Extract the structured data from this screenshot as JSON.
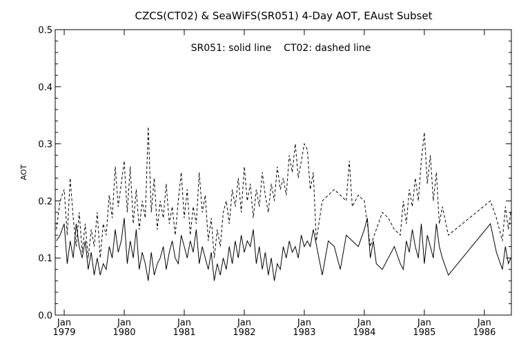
{
  "chart_data": {
    "type": "line",
    "title": "CZCS(CT02) & SeaWiFS(SR051) 4-Day AOT, EAust Subset",
    "annotation": "SR051: solid line    CT02: dashed line",
    "xlabel": "",
    "ylabel": "AOT",
    "xlim": [
      1978.85,
      1986.45
    ],
    "ylim": [
      0.0,
      0.5
    ],
    "yticks": [
      "0.0",
      "0.1",
      "0.2",
      "0.3",
      "0.4",
      "0.5"
    ],
    "xticks": [
      {
        "month": "Jan",
        "year": "1979",
        "x": 1979.0
      },
      {
        "month": "Jan",
        "year": "1980",
        "x": 1980.0
      },
      {
        "month": "Jan",
        "year": "1981",
        "x": 1981.0
      },
      {
        "month": "Jan",
        "year": "1982",
        "x": 1982.0
      },
      {
        "month": "Jan",
        "year": "1983",
        "x": 1983.0
      },
      {
        "month": "Jan",
        "year": "1984",
        "x": 1984.0
      },
      {
        "month": "Jan",
        "year": "1985",
        "x": 1985.0
      },
      {
        "month": "Jan",
        "year": "1986",
        "x": 1986.0
      }
    ],
    "grid": false,
    "series": [
      {
        "name": "SR051",
        "style": "solid",
        "x": [
          1978.87,
          1978.93,
          1979.0,
          1979.05,
          1979.1,
          1979.15,
          1979.2,
          1979.25,
          1979.3,
          1979.35,
          1979.4,
          1979.45,
          1979.5,
          1979.55,
          1979.6,
          1979.65,
          1979.7,
          1979.75,
          1979.8,
          1979.85,
          1979.9,
          1979.95,
          1980.0,
          1980.05,
          1980.1,
          1980.15,
          1980.2,
          1980.25,
          1980.3,
          1980.35,
          1980.4,
          1980.45,
          1980.5,
          1980.55,
          1980.6,
          1980.65,
          1980.7,
          1980.75,
          1980.8,
          1980.85,
          1980.9,
          1980.95,
          1981.0,
          1981.05,
          1981.1,
          1981.15,
          1981.2,
          1981.25,
          1981.3,
          1981.35,
          1981.4,
          1981.45,
          1981.5,
          1981.55,
          1981.6,
          1981.65,
          1981.7,
          1981.75,
          1981.8,
          1981.85,
          1981.9,
          1981.95,
          1982.0,
          1982.05,
          1982.1,
          1982.15,
          1982.2,
          1982.25,
          1982.3,
          1982.35,
          1982.4,
          1982.45,
          1982.5,
          1982.55,
          1982.6,
          1982.65,
          1982.7,
          1982.75,
          1982.8,
          1982.85,
          1982.9,
          1982.95,
          1983.0,
          1983.05,
          1983.1,
          1983.15,
          1983.3,
          1983.4,
          1983.5,
          1983.6,
          1983.7,
          1983.8,
          1983.9,
          1984.0,
          1984.05,
          1984.1,
          1984.15,
          1984.2,
          1984.3,
          1984.4,
          1984.5,
          1984.6,
          1984.65,
          1984.7,
          1984.75,
          1984.8,
          1984.85,
          1984.9,
          1984.95,
          1985.0,
          1985.05,
          1985.1,
          1985.15,
          1985.2,
          1985.25,
          1985.3,
          1985.4,
          1986.1,
          1986.2,
          1986.3,
          1986.35,
          1986.4,
          1986.44
        ],
        "y": [
          0.13,
          0.14,
          0.16,
          0.09,
          0.13,
          0.1,
          0.16,
          0.12,
          0.1,
          0.13,
          0.08,
          0.11,
          0.07,
          0.1,
          0.07,
          0.09,
          0.08,
          0.12,
          0.1,
          0.15,
          0.11,
          0.13,
          0.17,
          0.09,
          0.13,
          0.1,
          0.15,
          0.08,
          0.11,
          0.09,
          0.06,
          0.11,
          0.07,
          0.09,
          0.1,
          0.12,
          0.08,
          0.11,
          0.13,
          0.1,
          0.09,
          0.14,
          0.12,
          0.1,
          0.13,
          0.11,
          0.15,
          0.09,
          0.12,
          0.1,
          0.08,
          0.11,
          0.06,
          0.09,
          0.07,
          0.1,
          0.08,
          0.12,
          0.09,
          0.13,
          0.1,
          0.14,
          0.11,
          0.13,
          0.12,
          0.15,
          0.09,
          0.12,
          0.08,
          0.11,
          0.07,
          0.1,
          0.06,
          0.09,
          0.08,
          0.12,
          0.1,
          0.13,
          0.11,
          0.12,
          0.1,
          0.14,
          0.12,
          0.13,
          0.12,
          0.15,
          0.07,
          0.13,
          0.12,
          0.08,
          0.14,
          0.13,
          0.12,
          0.15,
          0.17,
          0.1,
          0.13,
          0.09,
          0.08,
          0.1,
          0.12,
          0.09,
          0.08,
          0.13,
          0.11,
          0.15,
          0.12,
          0.1,
          0.16,
          0.09,
          0.14,
          0.12,
          0.1,
          0.16,
          0.12,
          0.1,
          0.07,
          0.16,
          0.11,
          0.08,
          0.12,
          0.09,
          0.1
        ]
      },
      {
        "name": "CT02",
        "style": "dashed",
        "x": [
          1978.87,
          1978.93,
          1979.0,
          1979.05,
          1979.1,
          1979.15,
          1979.2,
          1979.25,
          1979.3,
          1979.35,
          1979.4,
          1979.45,
          1979.5,
          1979.55,
          1979.6,
          1979.65,
          1979.7,
          1979.75,
          1979.8,
          1979.85,
          1979.9,
          1979.95,
          1980.0,
          1980.05,
          1980.1,
          1980.15,
          1980.2,
          1980.25,
          1980.3,
          1980.35,
          1980.4,
          1980.45,
          1980.5,
          1980.55,
          1980.6,
          1980.65,
          1980.7,
          1980.75,
          1980.8,
          1980.85,
          1980.9,
          1980.95,
          1981.0,
          1981.05,
          1981.1,
          1981.15,
          1981.2,
          1981.25,
          1981.3,
          1981.35,
          1981.4,
          1981.45,
          1981.5,
          1981.55,
          1981.6,
          1981.65,
          1981.7,
          1981.75,
          1981.8,
          1981.85,
          1981.9,
          1981.95,
          1982.0,
          1982.05,
          1982.1,
          1982.15,
          1982.2,
          1982.25,
          1982.3,
          1982.35,
          1982.4,
          1982.45,
          1982.5,
          1982.55,
          1982.6,
          1982.65,
          1982.7,
          1982.75,
          1982.8,
          1982.85,
          1982.9,
          1982.95,
          1983.0,
          1983.05,
          1983.1,
          1983.15,
          1983.2,
          1983.3,
          1983.4,
          1983.5,
          1983.6,
          1983.7,
          1983.75,
          1983.8,
          1983.9,
          1984.0,
          1984.1,
          1984.2,
          1984.3,
          1984.4,
          1984.5,
          1984.6,
          1984.65,
          1984.7,
          1984.75,
          1984.8,
          1984.85,
          1984.9,
          1984.95,
          1985.0,
          1985.05,
          1985.1,
          1985.15,
          1985.2,
          1985.25,
          1985.3,
          1985.4,
          1986.1,
          1986.2,
          1986.3,
          1986.35,
          1986.4,
          1986.44
        ],
        "y": [
          0.15,
          0.2,
          0.22,
          0.14,
          0.24,
          0.17,
          0.12,
          0.18,
          0.11,
          0.16,
          0.1,
          0.15,
          0.12,
          0.18,
          0.1,
          0.16,
          0.14,
          0.21,
          0.17,
          0.26,
          0.19,
          0.23,
          0.27,
          0.18,
          0.26,
          0.16,
          0.22,
          0.15,
          0.2,
          0.17,
          0.33,
          0.18,
          0.24,
          0.15,
          0.2,
          0.17,
          0.23,
          0.16,
          0.19,
          0.14,
          0.2,
          0.25,
          0.17,
          0.22,
          0.14,
          0.19,
          0.16,
          0.25,
          0.18,
          0.21,
          0.13,
          0.17,
          0.1,
          0.15,
          0.12,
          0.18,
          0.2,
          0.16,
          0.22,
          0.19,
          0.24,
          0.18,
          0.26,
          0.2,
          0.23,
          0.17,
          0.22,
          0.19,
          0.25,
          0.21,
          0.18,
          0.23,
          0.2,
          0.26,
          0.22,
          0.24,
          0.21,
          0.28,
          0.25,
          0.3,
          0.24,
          0.27,
          0.3,
          0.29,
          0.22,
          0.25,
          0.13,
          0.2,
          0.21,
          0.22,
          0.21,
          0.2,
          0.27,
          0.19,
          0.21,
          0.2,
          0.12,
          0.15,
          0.18,
          0.17,
          0.15,
          0.14,
          0.2,
          0.16,
          0.22,
          0.19,
          0.24,
          0.2,
          0.27,
          0.32,
          0.23,
          0.28,
          0.2,
          0.25,
          0.16,
          0.19,
          0.14,
          0.2,
          0.17,
          0.13,
          0.19,
          0.15,
          0.18
        ]
      }
    ]
  }
}
